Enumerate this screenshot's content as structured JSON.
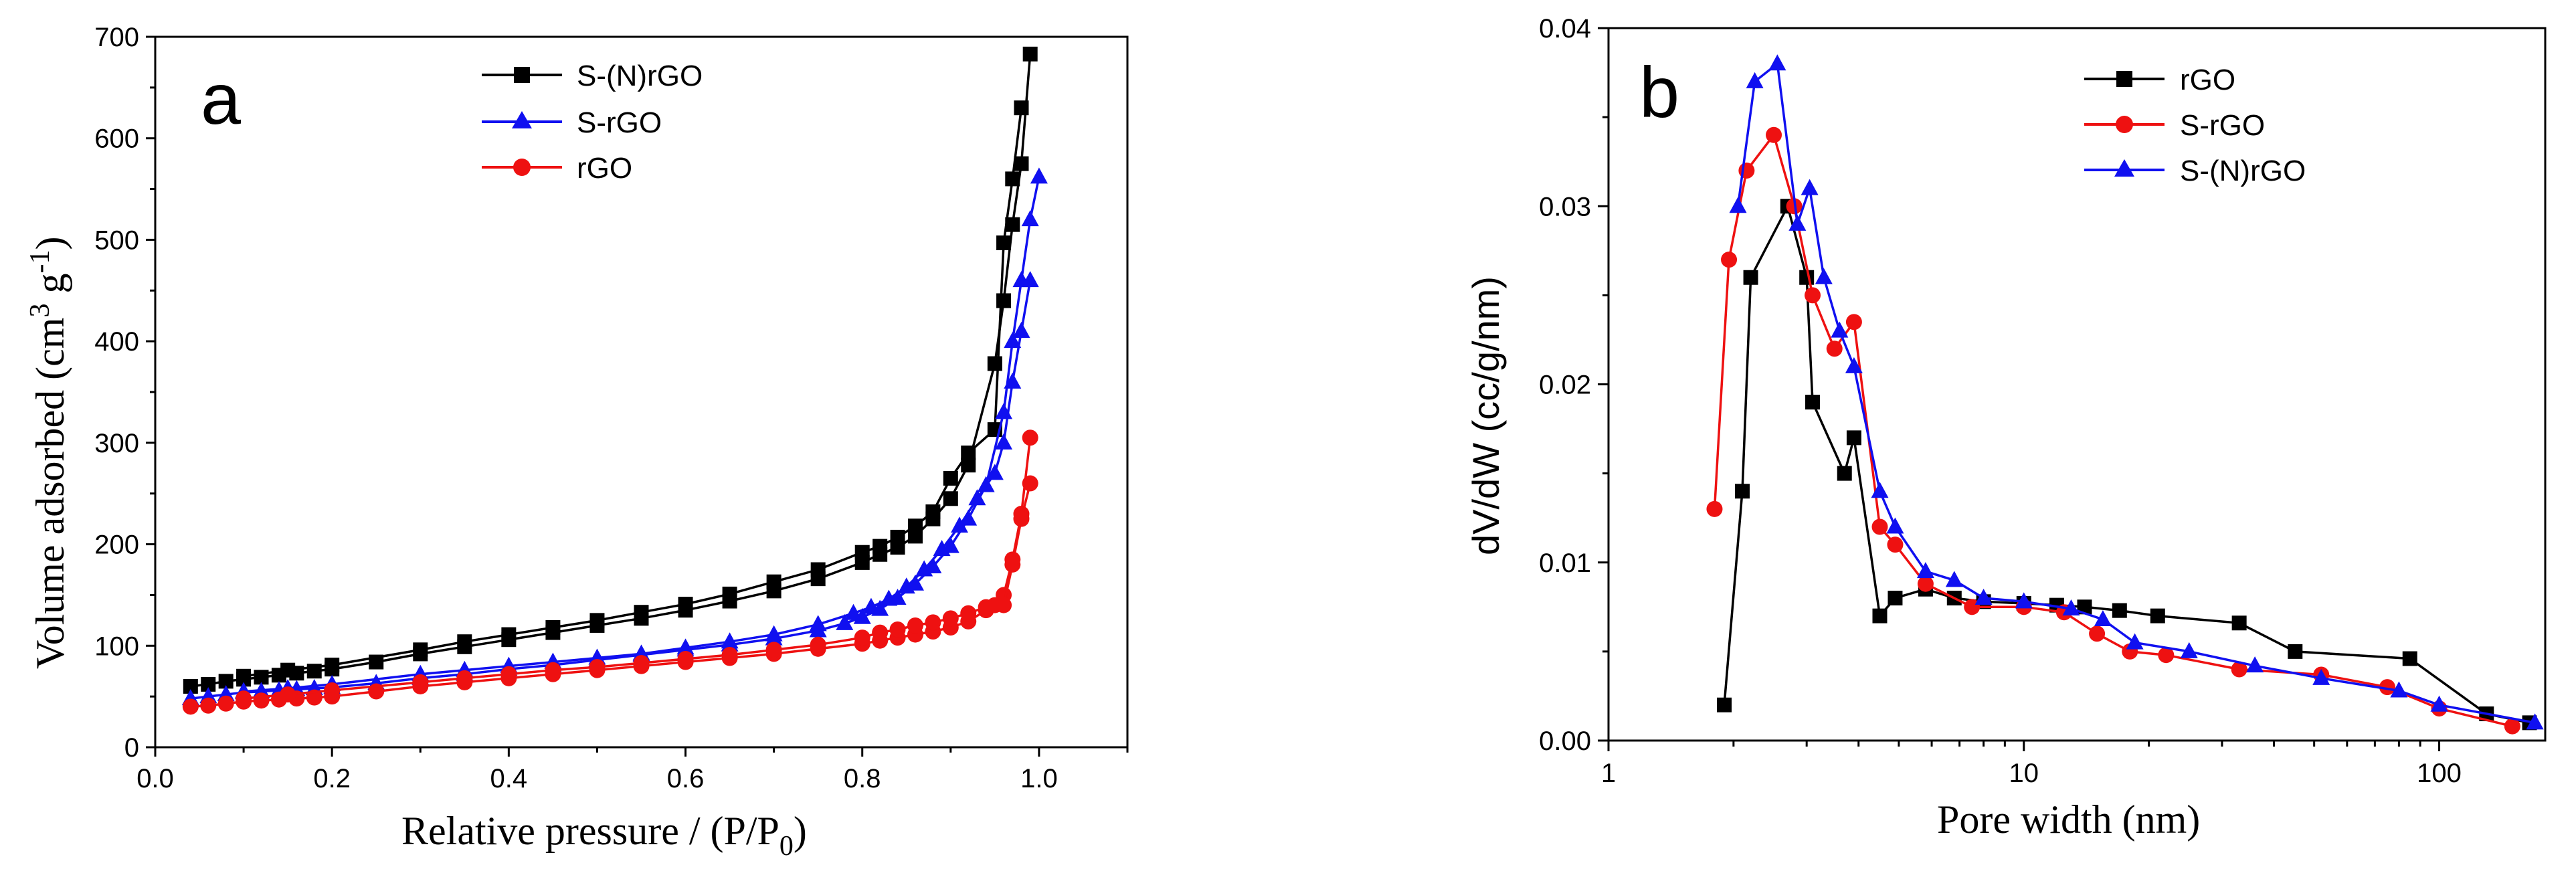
{
  "colors": {
    "black": "#000000",
    "blue": "#1010f0",
    "red": "#ee1111"
  },
  "chart_data": [
    {
      "type": "line",
      "panel_label": "a",
      "xlabel": "Relative pressure / (P/P",
      "xlabel_sub": "0",
      "xlabel_end": ")",
      "ylabel": "Volume adsorbed (cm",
      "ylabel_sup1": "3",
      "ylabel_mid": " g",
      "ylabel_sup2": "-1",
      "ylabel_end": ")",
      "xlim": [
        0.0,
        1.1
      ],
      "ylim": [
        0,
        700
      ],
      "xticks": [
        0.0,
        0.2,
        0.4,
        0.6,
        0.8,
        1.0
      ],
      "xtick_labels": [
        "0.0",
        "0.2",
        "0.4",
        "0.6",
        "0.8",
        "1.0"
      ],
      "yticks": [
        0,
        100,
        200,
        300,
        400,
        500,
        600,
        700
      ],
      "ytick_labels": [
        "0",
        "100",
        "200",
        "300",
        "400",
        "500",
        "600",
        "700"
      ],
      "legend_position": "top-center",
      "series": [
        {
          "name": "S-(N)rGO",
          "color": "#000000",
          "marker": "square",
          "adsorption": [
            [
              0.04,
              60
            ],
            [
              0.06,
              62
            ],
            [
              0.08,
              65
            ],
            [
              0.1,
              67
            ],
            [
              0.12,
              69
            ],
            [
              0.14,
              71
            ],
            [
              0.16,
              73
            ],
            [
              0.18,
              75
            ],
            [
              0.2,
              77
            ],
            [
              0.25,
              84
            ],
            [
              0.3,
              92
            ],
            [
              0.35,
              99
            ],
            [
              0.4,
              106
            ],
            [
              0.45,
              113
            ],
            [
              0.5,
              120
            ],
            [
              0.55,
              127
            ],
            [
              0.6,
              135
            ],
            [
              0.65,
              144
            ],
            [
              0.7,
              154
            ],
            [
              0.75,
              166
            ],
            [
              0.8,
              182
            ],
            [
              0.82,
              190
            ],
            [
              0.84,
              197
            ],
            [
              0.86,
              208
            ],
            [
              0.88,
              225
            ],
            [
              0.9,
              245
            ],
            [
              0.92,
              278
            ],
            [
              0.95,
              378
            ],
            [
              0.96,
              440
            ],
            [
              0.97,
              515
            ],
            [
              0.98,
              575
            ],
            [
              0.99,
              683
            ]
          ],
          "desorption": [
            [
              0.98,
              630
            ],
            [
              0.97,
              560
            ],
            [
              0.96,
              497
            ],
            [
              0.95,
              313
            ],
            [
              0.92,
              290
            ],
            [
              0.9,
              265
            ],
            [
              0.88,
              232
            ],
            [
              0.86,
              218
            ],
            [
              0.84,
              207
            ],
            [
              0.82,
              198
            ],
            [
              0.8,
              192
            ],
            [
              0.75,
              175
            ],
            [
              0.7,
              163
            ],
            [
              0.65,
              151
            ],
            [
              0.6,
              141
            ],
            [
              0.55,
              133
            ],
            [
              0.5,
              125
            ],
            [
              0.45,
              118
            ],
            [
              0.4,
              111
            ],
            [
              0.35,
              104
            ],
            [
              0.3,
              96
            ],
            [
              0.2,
              81
            ],
            [
              0.15,
              76
            ],
            [
              0.1,
              70
            ]
          ]
        },
        {
          "name": "S-rGO",
          "color": "#1010f0",
          "marker": "triangle",
          "adsorption": [
            [
              0.04,
              48
            ],
            [
              0.06,
              50
            ],
            [
              0.08,
              52
            ],
            [
              0.1,
              54
            ],
            [
              0.12,
              55
            ],
            [
              0.14,
              56
            ],
            [
              0.16,
              57
            ],
            [
              0.18,
              58
            ],
            [
              0.2,
              59
            ],
            [
              0.25,
              63
            ],
            [
              0.3,
              68
            ],
            [
              0.35,
              72
            ],
            [
              0.4,
              77
            ],
            [
              0.45,
              81
            ],
            [
              0.5,
              86
            ],
            [
              0.55,
              91
            ],
            [
              0.6,
              96
            ],
            [
              0.65,
              101
            ],
            [
              0.7,
              107
            ],
            [
              0.75,
              115
            ],
            [
              0.78,
              122
            ],
            [
              0.8,
              128
            ],
            [
              0.82,
              136
            ],
            [
              0.84,
              147
            ],
            [
              0.86,
              161
            ],
            [
              0.88,
              178
            ],
            [
              0.9,
              198
            ],
            [
              0.92,
              225
            ],
            [
              0.94,
              258
            ],
            [
              0.96,
              330
            ],
            [
              0.97,
              400
            ],
            [
              0.98,
              460
            ],
            [
              0.99,
              520
            ],
            [
              1.0,
              562
            ]
          ],
          "desorption": [
            [
              0.99,
              460
            ],
            [
              0.98,
              410
            ],
            [
              0.97,
              360
            ],
            [
              0.96,
              300
            ],
            [
              0.95,
              270
            ],
            [
              0.93,
              245
            ],
            [
              0.91,
              218
            ],
            [
              0.89,
              195
            ],
            [
              0.87,
              175
            ],
            [
              0.85,
              158
            ],
            [
              0.83,
              146
            ],
            [
              0.81,
              138
            ],
            [
              0.79,
              132
            ],
            [
              0.75,
              121
            ],
            [
              0.7,
              111
            ],
            [
              0.65,
              104
            ],
            [
              0.6,
              98
            ],
            [
              0.55,
              92
            ],
            [
              0.5,
              88
            ],
            [
              0.45,
              84
            ],
            [
              0.4,
              80
            ],
            [
              0.35,
              76
            ],
            [
              0.3,
              72
            ],
            [
              0.2,
              62
            ],
            [
              0.15,
              58
            ],
            [
              0.1,
              55
            ]
          ]
        },
        {
          "name": "rGO",
          "color": "#ee1111",
          "marker": "circle",
          "adsorption": [
            [
              0.04,
              40
            ],
            [
              0.06,
              41
            ],
            [
              0.08,
              43
            ],
            [
              0.1,
              45
            ],
            [
              0.12,
              46
            ],
            [
              0.14,
              47
            ],
            [
              0.16,
              48
            ],
            [
              0.18,
              49
            ],
            [
              0.2,
              50
            ],
            [
              0.25,
              55
            ],
            [
              0.3,
              60
            ],
            [
              0.35,
              64
            ],
            [
              0.4,
              68
            ],
            [
              0.45,
              72
            ],
            [
              0.5,
              76
            ],
            [
              0.55,
              80
            ],
            [
              0.6,
              84
            ],
            [
              0.65,
              88
            ],
            [
              0.7,
              92
            ],
            [
              0.75,
              97
            ],
            [
              0.8,
              102
            ],
            [
              0.82,
              105
            ],
            [
              0.84,
              108
            ],
            [
              0.86,
              111
            ],
            [
              0.88,
              114
            ],
            [
              0.9,
              118
            ],
            [
              0.92,
              124
            ],
            [
              0.94,
              135
            ],
            [
              0.95,
              140
            ],
            [
              0.96,
              150
            ],
            [
              0.97,
              185
            ],
            [
              0.98,
              230
            ],
            [
              0.99,
              305
            ]
          ],
          "desorption": [
            [
              0.99,
              260
            ],
            [
              0.98,
              225
            ],
            [
              0.97,
              180
            ],
            [
              0.96,
              140
            ],
            [
              0.94,
              138
            ],
            [
              0.92,
              132
            ],
            [
              0.9,
              127
            ],
            [
              0.88,
              123
            ],
            [
              0.86,
              120
            ],
            [
              0.84,
              116
            ],
            [
              0.82,
              113
            ],
            [
              0.8,
              108
            ],
            [
              0.75,
              101
            ],
            [
              0.7,
              96
            ],
            [
              0.65,
              91
            ],
            [
              0.6,
              87
            ],
            [
              0.55,
              83
            ],
            [
              0.5,
              79
            ],
            [
              0.45,
              76
            ],
            [
              0.4,
              72
            ],
            [
              0.35,
              68
            ],
            [
              0.3,
              64
            ],
            [
              0.2,
              56
            ],
            [
              0.15,
              52
            ],
            [
              0.1,
              48
            ]
          ]
        }
      ]
    },
    {
      "type": "line",
      "panel_label": "b",
      "xlabel": "Pore width (nm)",
      "ylabel": "dV/dW (cc/g/nm)",
      "xscale": "log",
      "xlim": [
        1,
        180
      ],
      "ylim": [
        0.0,
        0.04
      ],
      "xticks": [
        1,
        10,
        100
      ],
      "xtick_labels": [
        "1",
        "10",
        "100"
      ],
      "yticks": [
        0.0,
        0.01,
        0.02,
        0.03,
        0.04
      ],
      "ytick_labels": [
        "0.00",
        "0.01",
        "0.02",
        "0.03",
        "0.04"
      ],
      "legend_position": "top-right",
      "series": [
        {
          "name": "rGO",
          "color": "#000000",
          "marker": "square",
          "points": [
            [
              1.9,
              0.002
            ],
            [
              2.1,
              0.014
            ],
            [
              2.2,
              0.026
            ],
            [
              2.7,
              0.03
            ],
            [
              3.0,
              0.026
            ],
            [
              3.1,
              0.019
            ],
            [
              3.7,
              0.015
            ],
            [
              3.9,
              0.017
            ],
            [
              4.5,
              0.007
            ],
            [
              4.9,
              0.008
            ],
            [
              5.8,
              0.0085
            ],
            [
              6.8,
              0.008
            ],
            [
              8.0,
              0.0078
            ],
            [
              10.0,
              0.0077
            ],
            [
              12.0,
              0.0076
            ],
            [
              14.0,
              0.0075
            ],
            [
              17.0,
              0.0073
            ],
            [
              21.0,
              0.007
            ],
            [
              33.0,
              0.0066
            ],
            [
              45.0,
              0.005
            ],
            [
              85.0,
              0.0046
            ],
            [
              130.0,
              0.0015
            ],
            [
              165.0,
              0.001
            ]
          ]
        },
        {
          "name": "S-rGO",
          "color": "#ee1111",
          "marker": "circle",
          "points": [
            [
              1.8,
              0.013
            ],
            [
              1.95,
              0.027
            ],
            [
              2.15,
              0.032
            ],
            [
              2.5,
              0.034
            ],
            [
              2.8,
              0.03
            ],
            [
              3.1,
              0.025
            ],
            [
              3.5,
              0.022
            ],
            [
              3.9,
              0.0235
            ],
            [
              4.5,
              0.012
            ],
            [
              4.9,
              0.011
            ],
            [
              5.8,
              0.0088
            ],
            [
              7.5,
              0.0075
            ],
            [
              10.0,
              0.0075
            ],
            [
              12.5,
              0.0072
            ],
            [
              15.0,
              0.006
            ],
            [
              18.0,
              0.005
            ],
            [
              22.0,
              0.0048
            ],
            [
              33.0,
              0.004
            ],
            [
              52.0,
              0.0037
            ],
            [
              75.0,
              0.003
            ],
            [
              100.0,
              0.0018
            ],
            [
              150.0,
              0.0008
            ]
          ]
        },
        {
          "name": "S-(N)rGO",
          "color": "#1010f0",
          "marker": "triangle",
          "points": [
            [
              2.05,
              0.03
            ],
            [
              2.25,
              0.037
            ],
            [
              2.55,
              0.038
            ],
            [
              2.85,
              0.029
            ],
            [
              3.05,
              0.031
            ],
            [
              3.3,
              0.026
            ],
            [
              3.6,
              0.023
            ],
            [
              3.9,
              0.021
            ],
            [
              4.5,
              0.014
            ],
            [
              4.9,
              0.012
            ],
            [
              5.8,
              0.0095
            ],
            [
              6.8,
              0.009
            ],
            [
              8.0,
              0.008
            ],
            [
              10.0,
              0.0078
            ],
            [
              13.0,
              0.0074
            ],
            [
              15.5,
              0.0068
            ],
            [
              18.5,
              0.0055
            ],
            [
              25.0,
              0.005
            ],
            [
              36.0,
              0.0042
            ],
            [
              52.0,
              0.0035
            ],
            [
              80.0,
              0.0028
            ],
            [
              100.0,
              0.002
            ],
            [
              170.0,
              0.001
            ]
          ]
        }
      ]
    }
  ]
}
